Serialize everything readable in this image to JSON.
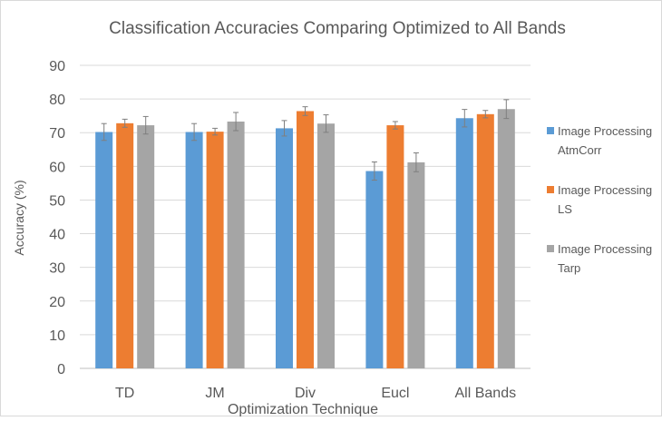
{
  "chart_data": {
    "type": "bar",
    "title": "Classification Accuracies Comparing Optimized to All Bands",
    "xlabel": "Optimization Technique",
    "ylabel": "Accuracy (%)",
    "ylim": [
      0,
      90
    ],
    "yticks": [
      0,
      10,
      20,
      30,
      40,
      50,
      60,
      70,
      80,
      90
    ],
    "grid": true,
    "legend_position": "right",
    "categories": [
      "TD",
      "JM",
      "Div",
      "Eucl",
      "All Bands"
    ],
    "series": [
      {
        "name_lines": [
          "Image Processing",
          "AtmCorr"
        ],
        "color": "#5b9bd5",
        "values": [
          70.2,
          70.2,
          71.3,
          58.6,
          74.3
        ],
        "errors": [
          2.5,
          2.5,
          2.3,
          2.7,
          2.6
        ]
      },
      {
        "name_lines": [
          "Image Processing",
          "LS"
        ],
        "color": "#ed7d31",
        "values": [
          72.8,
          70.3,
          76.4,
          72.2,
          75.5
        ],
        "errors": [
          1.2,
          1.0,
          1.3,
          1.1,
          1.1
        ]
      },
      {
        "name_lines": [
          "Image Processing",
          "Tarp"
        ],
        "color": "#a5a5a5",
        "values": [
          72.2,
          73.3,
          72.7,
          61.2,
          77.0
        ],
        "errors": [
          2.6,
          2.7,
          2.6,
          2.8,
          2.8
        ]
      }
    ]
  }
}
